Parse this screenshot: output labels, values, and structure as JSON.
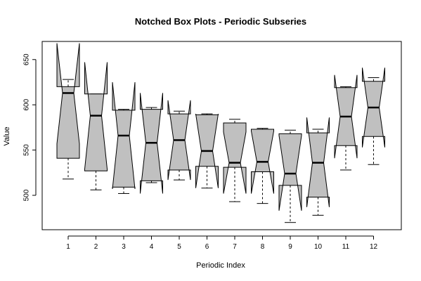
{
  "chart_data": {
    "type": "box",
    "title": "Notched Box Plots - Periodic Subseries",
    "xlabel": "Periodic Index",
    "ylabel": "Value",
    "ylim": [
      462,
      670
    ],
    "yticks": [
      500,
      550,
      600,
      650
    ],
    "fill_color": "#c0c0c0",
    "line_color": "#000000",
    "categories": [
      "1",
      "2",
      "3",
      "4",
      "5",
      "6",
      "7",
      "8",
      "9",
      "10",
      "11",
      "12"
    ],
    "boxes": [
      {
        "whisker_low": 518,
        "q1": 541,
        "median": 613,
        "q3": 620,
        "whisker_high": 628,
        "notch_low": 557,
        "notch_high": 668
      },
      {
        "whisker_low": 506,
        "q1": 527,
        "median": 588,
        "q3": 612,
        "whisker_high": 612,
        "notch_low": 529,
        "notch_high": 647
      },
      {
        "whisker_low": 502,
        "q1": 509,
        "median": 566,
        "q3": 594,
        "whisker_high": 595,
        "notch_low": 507,
        "notch_high": 625
      },
      {
        "whisker_low": 514,
        "q1": 516,
        "median": 558,
        "q3": 595,
        "whisker_high": 597,
        "notch_low": 502,
        "notch_high": 613
      },
      {
        "whisker_low": 517,
        "q1": 528,
        "median": 561,
        "q3": 590,
        "whisker_high": 593,
        "notch_low": 517,
        "notch_high": 605
      },
      {
        "whisker_low": 508,
        "q1": 532,
        "median": 549,
        "q3": 589,
        "whisker_high": 590,
        "notch_low": 508,
        "notch_high": 590
      },
      {
        "whisker_low": 493,
        "q1": 531,
        "median": 536,
        "q3": 580,
        "whisker_high": 584,
        "notch_low": 502,
        "notch_high": 570
      },
      {
        "whisker_low": 491,
        "q1": 526,
        "median": 537,
        "q3": 573,
        "whisker_high": 574,
        "notch_low": 502,
        "notch_high": 571
      },
      {
        "whisker_low": 470,
        "q1": 511,
        "median": 524,
        "q3": 568,
        "whisker_high": 572,
        "notch_low": 483,
        "notch_high": 566
      },
      {
        "whisker_low": 478,
        "q1": 498,
        "median": 536,
        "q3": 569,
        "whisker_high": 573,
        "notch_low": 487,
        "notch_high": 586
      },
      {
        "whisker_low": 528,
        "q1": 555,
        "median": 587,
        "q3": 619,
        "whisker_high": 620,
        "notch_low": 541,
        "notch_high": 633
      },
      {
        "whisker_low": 534,
        "q1": 565,
        "median": 597,
        "q3": 626,
        "whisker_high": 630,
        "notch_low": 553,
        "notch_high": 641
      }
    ]
  }
}
